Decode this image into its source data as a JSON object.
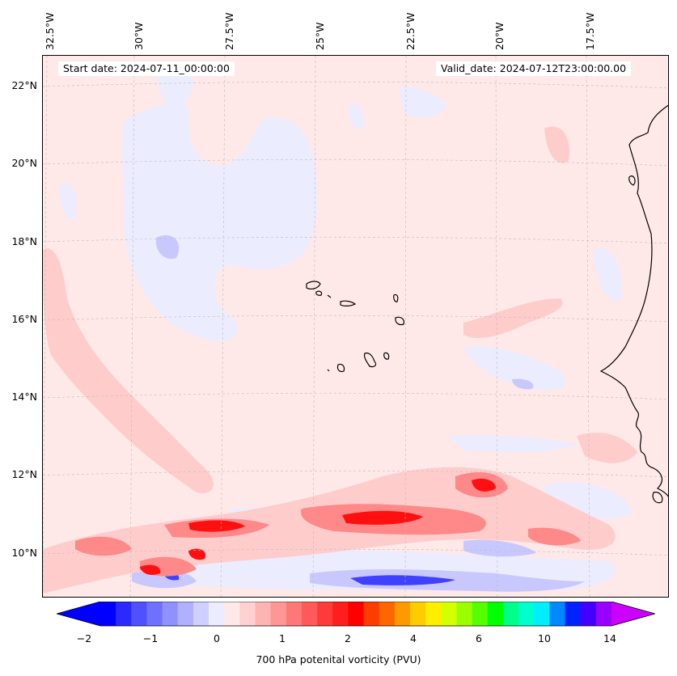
{
  "map": {
    "start_date": "Start date: 2024-07-11_00:00:00",
    "valid_date": "Valid_date: 2024-07-12T23:00:00.00",
    "lon_labels": [
      "32.5°W",
      "30°W",
      "27.5°W",
      "25°W",
      "22.5°W",
      "20°W",
      "17.5°W"
    ],
    "lat_labels": [
      "22°N",
      "20°N",
      "18°N",
      "16°N",
      "14°N",
      "12°N",
      "10°N"
    ],
    "region": "Cape Verde Islands and West African coast",
    "field": "700 hPa potential vorticity"
  },
  "colorbar": {
    "label": "700 hPa potenital vorticity (PVU)",
    "tick_labels": [
      "−2",
      "−1",
      "0",
      "1",
      "2",
      "4",
      "6",
      "10",
      "14"
    ],
    "colors": [
      "#0000ff",
      "#2a2aff",
      "#5050ff",
      "#7070ff",
      "#9090ff",
      "#b0b0ff",
      "#d0d0ff",
      "#ececff",
      "#ffe8e8",
      "#ffd0d0",
      "#ffb4b4",
      "#ff9696",
      "#ff7878",
      "#ff5a5a",
      "#ff3a3a",
      "#ff1e1e",
      "#ff0000",
      "#ff3c00",
      "#ff6600",
      "#ff9900",
      "#ffcc00",
      "#ffee00",
      "#d4ff00",
      "#99ff00",
      "#55ff00",
      "#00ff00",
      "#00ff88",
      "#00ffcc",
      "#00eeff",
      "#0088ff",
      "#0022ff",
      "#4400ff",
      "#9900ff"
    ],
    "under_color": "#0000ff",
    "over_color": "#cc00ff"
  },
  "colors": {
    "background": "#ffe8e8",
    "light_blue": "#ececff",
    "mid_blue": "#c8c8ff",
    "deep_blue": "#4040ff",
    "light_red": "#ffcccc",
    "mid_red": "#ff8888",
    "deep_red": "#ff1010"
  }
}
